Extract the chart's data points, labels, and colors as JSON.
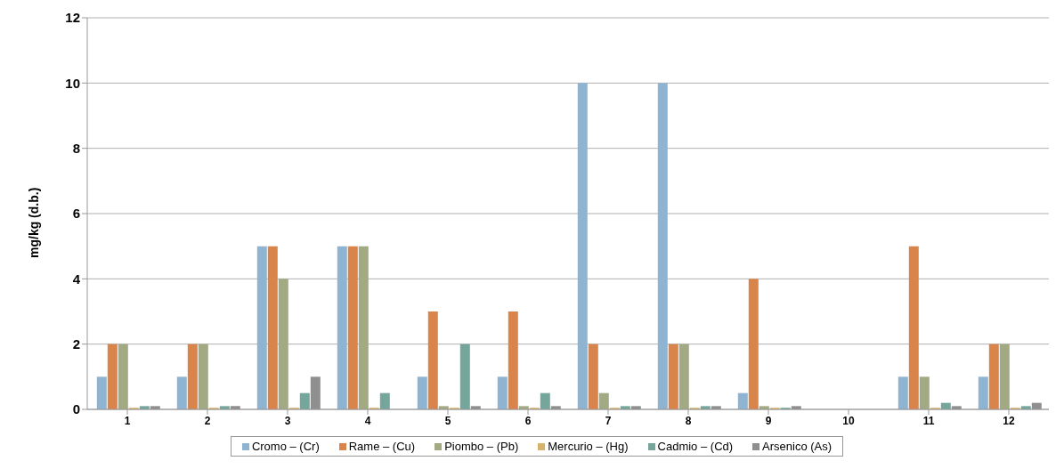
{
  "chart_data": {
    "type": "bar",
    "ylabel": "mg/kg (d.b.)",
    "categories": [
      "1",
      "2",
      "3",
      "4",
      "5",
      "6",
      "7",
      "8",
      "9",
      "10",
      "11",
      "12"
    ],
    "series": [
      {
        "name": "Cromo – (Cr)",
        "color": "#8fb4d2",
        "values": [
          1,
          1,
          5,
          5,
          1,
          1,
          10,
          10,
          0.5,
          0,
          1,
          1
        ]
      },
      {
        "name": "Rame – (Cu)",
        "color": "#d9844a",
        "values": [
          2,
          2,
          5,
          5,
          3,
          3,
          2,
          2,
          4,
          0,
          5,
          2
        ]
      },
      {
        "name": "Piombo – (Pb)",
        "color": "#a2aa84",
        "values": [
          2,
          2,
          4,
          5,
          0.1,
          0.1,
          0.5,
          2,
          0.1,
          0,
          1,
          2
        ]
      },
      {
        "name": "Mercurio – (Hg)",
        "color": "#d9b26b",
        "values": [
          0.05,
          0.05,
          0.05,
          0.05,
          0.05,
          0.05,
          0.05,
          0.05,
          0.05,
          0,
          0.05,
          0.05
        ]
      },
      {
        "name": "Cadmio – (Cd)",
        "color": "#75a69c",
        "values": [
          0.1,
          0.1,
          0.5,
          0.5,
          2,
          0.5,
          0.1,
          0.1,
          0.05,
          0,
          0.2,
          0.1
        ]
      },
      {
        "name": "Arsenico (As)",
        "color": "#8f8f8f",
        "values": [
          0.1,
          0.1,
          1,
          0,
          0.1,
          0.1,
          0.1,
          0.1,
          0.1,
          0,
          0.1,
          0.2
        ]
      }
    ],
    "ylim": [
      0,
      12
    ],
    "yticks": [
      0,
      2,
      4,
      6,
      8,
      10,
      12
    ],
    "grid": "y",
    "legend": "bottom"
  }
}
